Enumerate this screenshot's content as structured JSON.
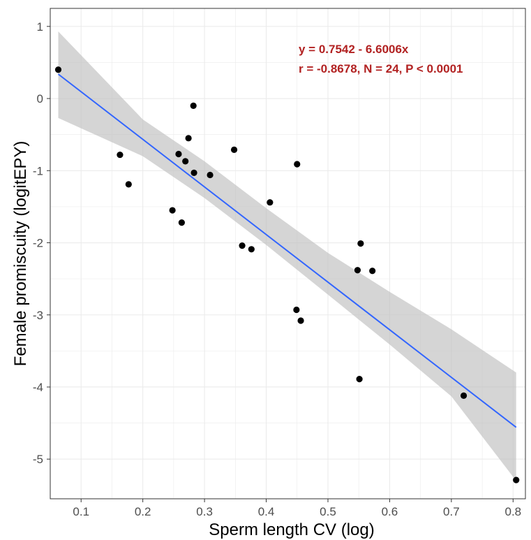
{
  "chart_data": {
    "type": "scatter",
    "title": "",
    "xlabel": "Sperm length CV (log)",
    "ylabel": "Female promiscuity (logitEPY)",
    "xlim": [
      0.05,
      0.82
    ],
    "ylim": [
      -5.55,
      1.25
    ],
    "x_ticks": [
      0.1,
      0.2,
      0.3,
      0.4,
      0.5,
      0.6,
      0.7,
      0.8
    ],
    "x_tick_labels": [
      "0.1",
      "0.2",
      "0.3",
      "0.4",
      "0.5",
      "0.6",
      "0.7",
      "0.8"
    ],
    "y_ticks": [
      -5,
      -4,
      -3,
      -2,
      -1,
      0,
      1
    ],
    "y_tick_labels": [
      "-5",
      "-4",
      "-3",
      "-2",
      "-1",
      "0",
      "1"
    ],
    "grid": true,
    "points": [
      {
        "x": 0.063,
        "y": 0.4
      },
      {
        "x": 0.163,
        "y": -0.78
      },
      {
        "x": 0.177,
        "y": -1.19
      },
      {
        "x": 0.248,
        "y": -1.55
      },
      {
        "x": 0.258,
        "y": -0.77
      },
      {
        "x": 0.263,
        "y": -1.72
      },
      {
        "x": 0.269,
        "y": -0.87
      },
      {
        "x": 0.274,
        "y": -0.55
      },
      {
        "x": 0.282,
        "y": -0.1
      },
      {
        "x": 0.283,
        "y": -1.03
      },
      {
        "x": 0.309,
        "y": -1.06
      },
      {
        "x": 0.348,
        "y": -0.71
      },
      {
        "x": 0.361,
        "y": -2.04
      },
      {
        "x": 0.376,
        "y": -2.09
      },
      {
        "x": 0.406,
        "y": -1.44
      },
      {
        "x": 0.45,
        "y": -0.91
      },
      {
        "x": 0.449,
        "y": -2.93
      },
      {
        "x": 0.456,
        "y": -3.08
      },
      {
        "x": 0.548,
        "y": -2.38
      },
      {
        "x": 0.553,
        "y": -2.01
      },
      {
        "x": 0.551,
        "y": -3.89
      },
      {
        "x": 0.572,
        "y": -2.39
      },
      {
        "x": 0.72,
        "y": -4.12
      },
      {
        "x": 0.805,
        "y": -5.29
      }
    ],
    "regression": {
      "intercept": 0.7542,
      "slope": -6.6006,
      "x_range": [
        0.063,
        0.805
      ],
      "ci_band": [
        {
          "x": 0.063,
          "lo": -0.27,
          "hi": 0.93
        },
        {
          "x": 0.2,
          "lo": -0.8,
          "hi": -0.29
        },
        {
          "x": 0.3,
          "lo": -1.38,
          "hi": -0.87
        },
        {
          "x": 0.4,
          "lo": -2.03,
          "hi": -1.52
        },
        {
          "x": 0.5,
          "lo": -2.72,
          "hi": -2.14
        },
        {
          "x": 0.6,
          "lo": -3.41,
          "hi": -2.68
        },
        {
          "x": 0.7,
          "lo": -4.13,
          "hi": -3.2
        },
        {
          "x": 0.805,
          "lo": -5.3,
          "hi": -3.8
        }
      ]
    },
    "annotations": [
      "y = 0.7542 - 6.6006x",
      "r = -0.8678, N = 24, P < 0.0001"
    ],
    "colors": {
      "points": "#000000",
      "line": "#3366FF",
      "band": "#BEBEBE",
      "annotation": "#B22222",
      "grid": "#EBEBEB",
      "panel_border": "#333333"
    }
  }
}
